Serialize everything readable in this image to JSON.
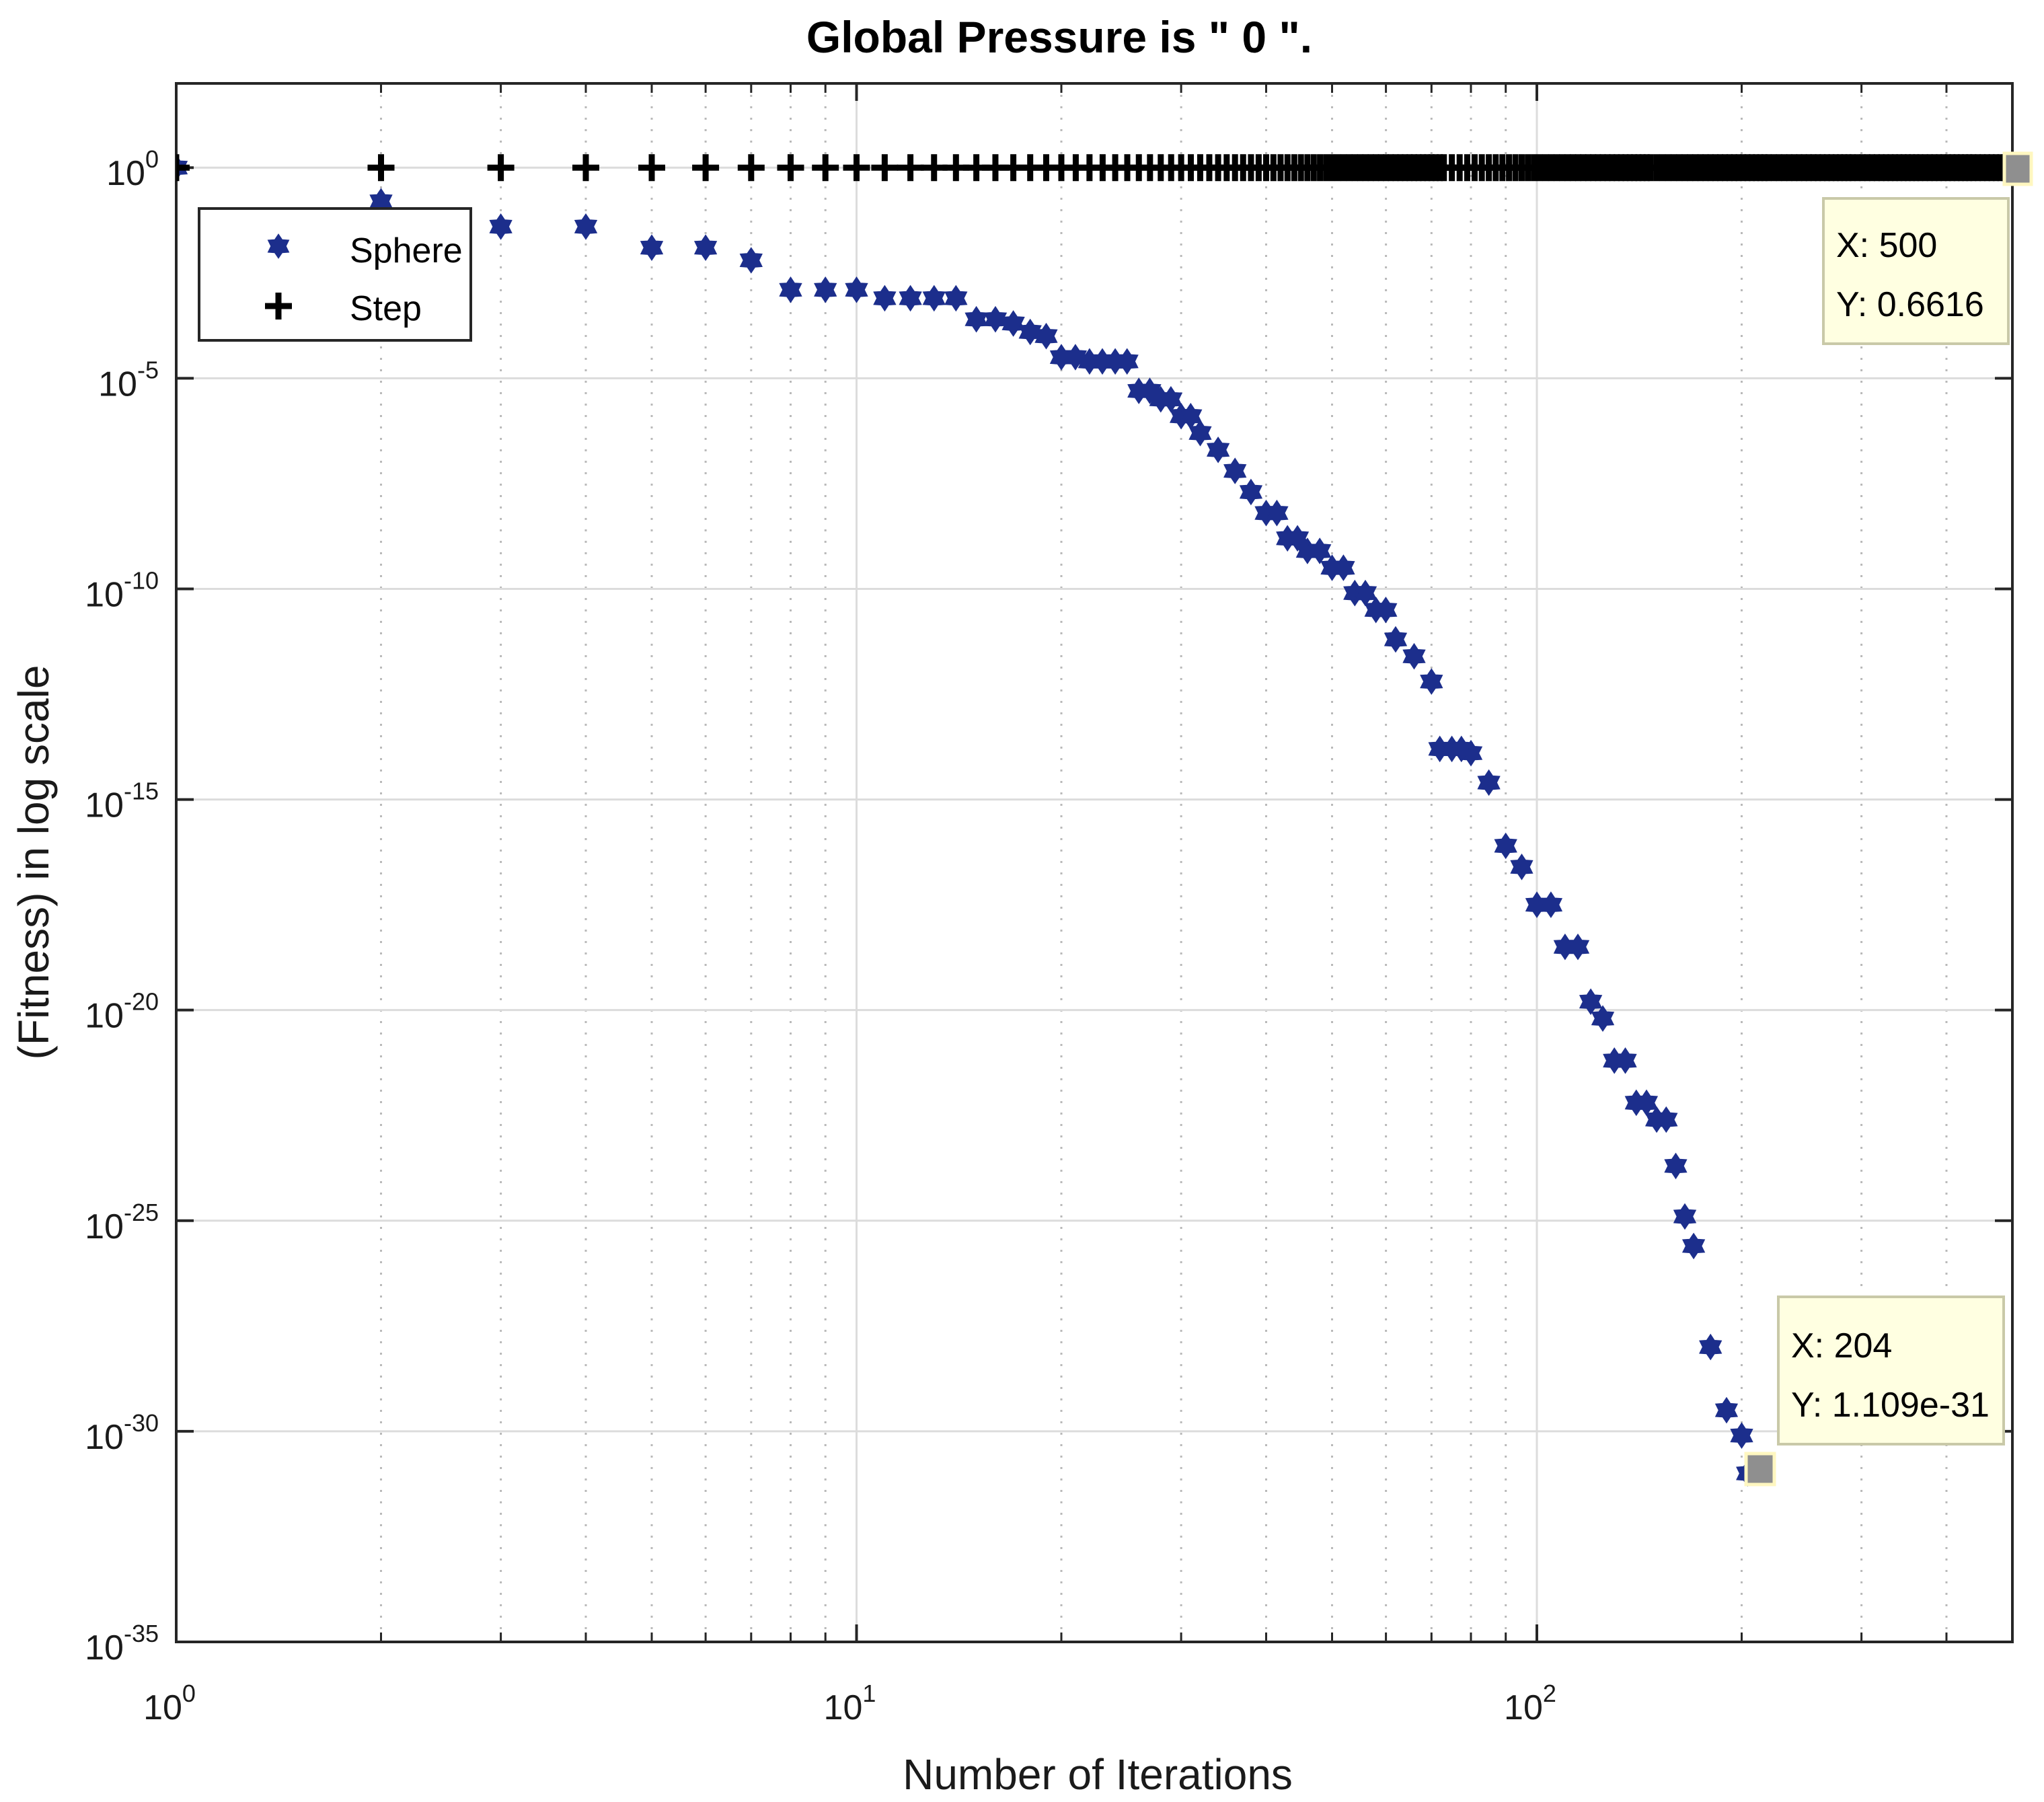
{
  "chart_data": {
    "type": "scatter",
    "title": "Global Pressure is \" 0 \".",
    "xlabel": "Number of Iterations",
    "ylabel": "(Fitness) in log scale",
    "xscale": "log",
    "yscale": "log",
    "xlim": [
      1,
      500
    ],
    "ylim": [
      1e-35,
      100.0
    ],
    "grid": true,
    "x_ticks": [
      {
        "base": "10",
        "exp": "0",
        "value": 1
      },
      {
        "base": "10",
        "exp": "1",
        "value": 10
      },
      {
        "base": "10",
        "exp": "2",
        "value": 100
      }
    ],
    "y_ticks": [
      {
        "base": "10",
        "exp": "0",
        "value": 0
      },
      {
        "base": "10",
        "exp": "-5",
        "value": -5
      },
      {
        "base": "10",
        "exp": "-10",
        "value": -10
      },
      {
        "base": "10",
        "exp": "-15",
        "value": -15
      },
      {
        "base": "10",
        "exp": "-20",
        "value": -20
      },
      {
        "base": "10",
        "exp": "-25",
        "value": -25
      },
      {
        "base": "10",
        "exp": "-30",
        "value": -30
      },
      {
        "base": "10",
        "exp": "-35",
        "value": -35
      }
    ],
    "legend": {
      "position": "top-left",
      "entries": [
        {
          "label": "Sphere",
          "marker": "hexagram",
          "color": "#1c2e8c"
        },
        {
          "label": "Step",
          "marker": "plus",
          "color": "#000000"
        }
      ]
    },
    "series": [
      {
        "name": "Sphere",
        "color": "#1c2e8c",
        "marker": "hexagram",
        "x": [
          1,
          2,
          3,
          4,
          5,
          6,
          7,
          8,
          9,
          10,
          11,
          12,
          13,
          14,
          15,
          16,
          17,
          18,
          19,
          20,
          22,
          24,
          26,
          28,
          30,
          32,
          34,
          36,
          38,
          40,
          43,
          46,
          50,
          54,
          58,
          62,
          66,
          70,
          72,
          75,
          80,
          85,
          90,
          95,
          100,
          110,
          120,
          125,
          130,
          140,
          150,
          160,
          165,
          170,
          180,
          190,
          200,
          204
        ],
        "y_log10": [
          0,
          -0.8,
          -1.4,
          -1.4,
          -1.9,
          -1.9,
          -2.2,
          -2.9,
          -2.9,
          -2.9,
          -3.1,
          -3.1,
          -3.1,
          -3.1,
          -3.6,
          -3.6,
          -3.7,
          -3.9,
          -4.0,
          -4.5,
          -4.6,
          -4.6,
          -5.3,
          -5.5,
          -5.9,
          -6.3,
          -6.7,
          -7.2,
          -7.7,
          -8.2,
          -8.8,
          -9.1,
          -9.5,
          -10.1,
          -10.5,
          -11.2,
          -11.6,
          -12.2,
          -13.8,
          -13.8,
          -13.9,
          -14.6,
          -16.1,
          -16.6,
          -17.5,
          -18.5,
          -19.8,
          -20.2,
          -21.2,
          -22.2,
          -22.6,
          -23.7,
          -24.9,
          -25.6,
          -28.0,
          -29.5,
          -30.1,
          -31.0
        ]
      },
      {
        "name": "Step",
        "color": "#000000",
        "marker": "plus",
        "x_range": [
          1,
          500
        ],
        "y_value": 0.6616,
        "y_log10": 0
      }
    ],
    "annotations": [
      {
        "x_label": "X: 500",
        "y_label": "Y: 0.6616",
        "x": 500,
        "y_log10": 0
      },
      {
        "x_label": "X: 204",
        "y_label": "Y: 1.109e-31",
        "x": 204,
        "y_log10": -31
      }
    ]
  }
}
